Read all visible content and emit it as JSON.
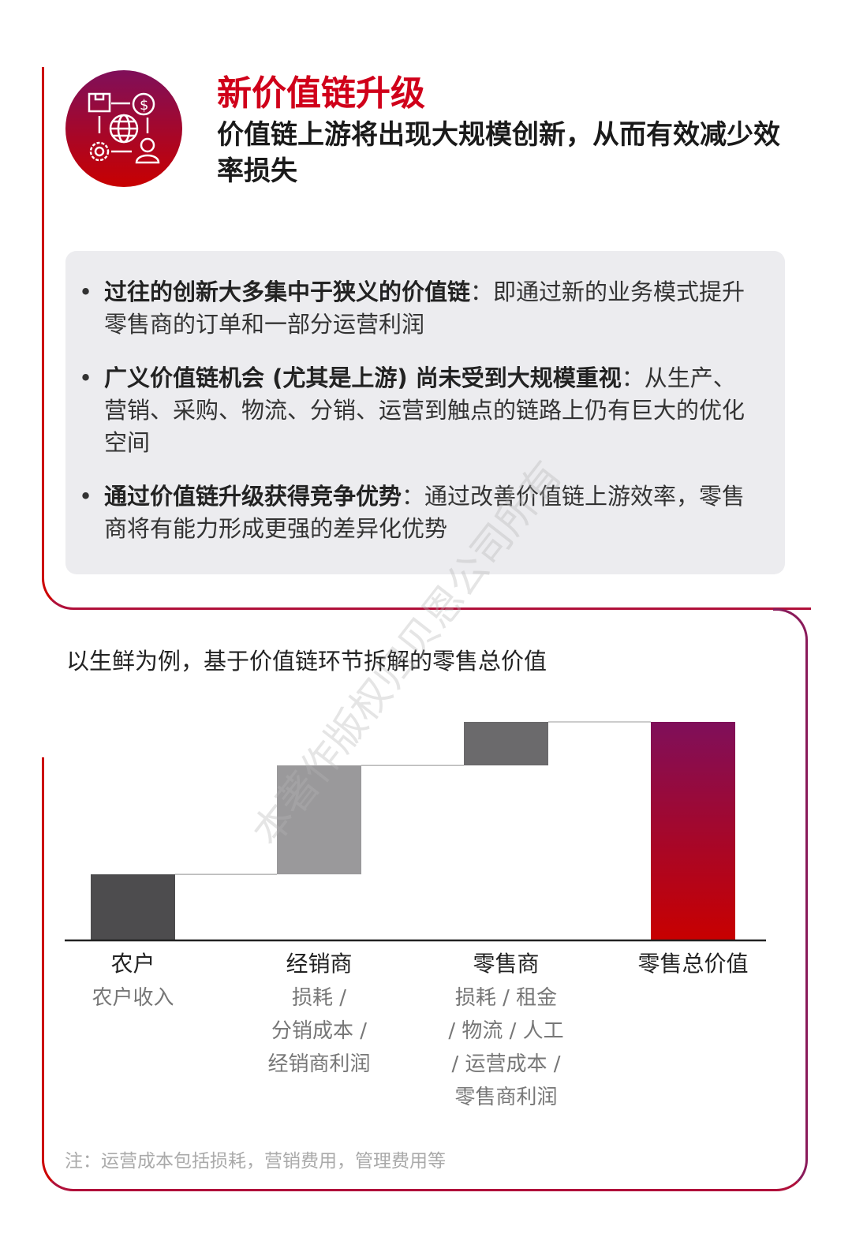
{
  "header": {
    "title": "新价值链升级",
    "subtitle": "价值链上游将出现大规模创新，从而有效减少效率损失",
    "icon": "value-chain-globe-icon"
  },
  "bullets": [
    {
      "bold": "过往的创新大多集中于狭义的价值链",
      "text": "：即通过新的业务模式提升零售商的订单和一部分运营利润"
    },
    {
      "bold": "广义价值链机会 (尤其是上游) 尚未受到大规模重视",
      "text": "：从生产、营销、采购、物流、分销、运营到触点的链路上仍有巨大的优化空间"
    },
    {
      "bold": "通过价值链升级获得竞争优势",
      "text": "：通过改善价值链上游效率，零售商将有能力形成更强的差异化优势"
    }
  ],
  "watermark": "本著作版权归贝恩公司所有",
  "chart_data": {
    "type": "bar",
    "subtype": "waterfall",
    "title": "以生鲜为例，基于价值链环节拆解的零售总价值",
    "categories": [
      "农户",
      "经销商",
      "零售商",
      "零售总价值"
    ],
    "sublabels": [
      [
        "农户收入"
      ],
      [
        "损耗 /",
        "分销成本 /",
        "经销商利润"
      ],
      [
        "损耗 / 租金",
        "/ 物流 / 人工",
        "/ 运营成本 /",
        "零售商利润"
      ],
      []
    ],
    "values": [
      30,
      50,
      20,
      100
    ],
    "value_unit": "percent of total (estimated, unlabeled)",
    "colors": [
      "#4d4c4e",
      "#9a999b",
      "#6b6a6c",
      "gradient #7f0f5a-#c80000"
    ],
    "grid": false,
    "note": "注：运营成本包括损耗，营销费用，管理费用等"
  }
}
